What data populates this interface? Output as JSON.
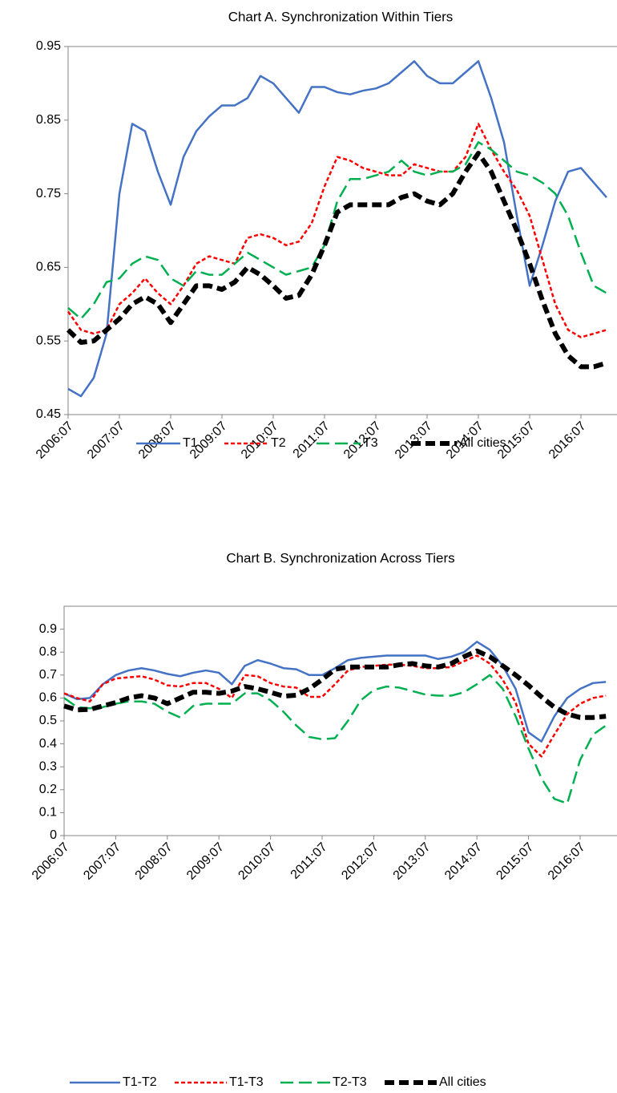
{
  "chart_data": [
    {
      "type": "line",
      "title": "Chart A. Synchronization Within Tiers",
      "categories": [
        "2006:07",
        null,
        null,
        null,
        "2007:07",
        null,
        null,
        null,
        "2008:07",
        null,
        null,
        null,
        "2009:07",
        null,
        null,
        null,
        "2010:07",
        null,
        null,
        null,
        "2011:07",
        null,
        null,
        null,
        "2012:07",
        null,
        null,
        null,
        "2013:07",
        null,
        null,
        null,
        "2014:07",
        null,
        null,
        null,
        "2015:07",
        null,
        null,
        null,
        "2016:07",
        null,
        null
      ],
      "ylim": [
        0.45,
        0.95
      ],
      "yticks": [
        0.45,
        0.55,
        0.65,
        0.75,
        0.85,
        0.95
      ],
      "grid": false,
      "legend": "bottom",
      "series": [
        {
          "name": "T1",
          "color": "#4472C4",
          "line_style": "solid",
          "values": [
            0.485,
            0.475,
            0.5,
            0.56,
            0.75,
            0.845,
            0.835,
            0.78,
            0.735,
            0.8,
            0.835,
            0.855,
            0.87,
            0.87,
            0.88,
            0.91,
            0.9,
            0.88,
            0.86,
            0.895,
            0.895,
            0.888,
            0.885,
            0.89,
            0.893,
            0.9,
            0.915,
            0.93,
            0.91,
            0.9,
            0.9,
            0.915,
            0.93,
            0.88,
            0.82,
            0.72,
            0.625,
            0.68,
            0.74,
            0.78,
            0.785,
            0.765,
            0.745
          ]
        },
        {
          "name": "T2",
          "color": "#FF0000",
          "line_style": "dash",
          "values": [
            0.59,
            0.565,
            0.56,
            0.565,
            0.6,
            0.615,
            0.635,
            0.615,
            0.6,
            0.625,
            0.655,
            0.665,
            0.66,
            0.655,
            0.69,
            0.695,
            0.69,
            0.68,
            0.685,
            0.71,
            0.76,
            0.8,
            0.795,
            0.785,
            0.78,
            0.775,
            0.775,
            0.79,
            0.785,
            0.78,
            0.78,
            0.8,
            0.845,
            0.81,
            0.78,
            0.755,
            0.72,
            0.66,
            0.6,
            0.565,
            0.555,
            0.56,
            0.565
          ]
        },
        {
          "name": "T3",
          "color": "#00B050",
          "line_style": "long-dash",
          "values": [
            0.595,
            0.58,
            0.6,
            0.63,
            0.635,
            0.655,
            0.665,
            0.66,
            0.635,
            0.625,
            0.645,
            0.64,
            0.64,
            0.655,
            0.67,
            0.66,
            0.65,
            0.64,
            0.645,
            0.65,
            0.68,
            0.74,
            0.77,
            0.77,
            0.775,
            0.78,
            0.795,
            0.78,
            0.775,
            0.78,
            0.78,
            0.79,
            0.82,
            0.81,
            0.795,
            0.78,
            0.775,
            0.765,
            0.75,
            0.72,
            0.67,
            0.625,
            0.615
          ]
        },
        {
          "name": "All cities",
          "color": "#000000",
          "line_style": "heavy-dash",
          "values": [
            0.565,
            0.548,
            0.55,
            0.565,
            0.58,
            0.6,
            0.61,
            0.6,
            0.575,
            0.6,
            0.625,
            0.625,
            0.62,
            0.63,
            0.65,
            0.64,
            0.625,
            0.608,
            0.612,
            0.64,
            0.68,
            0.725,
            0.735,
            0.735,
            0.735,
            0.735,
            0.745,
            0.75,
            0.74,
            0.735,
            0.75,
            0.78,
            0.805,
            0.78,
            0.74,
            0.7,
            0.655,
            0.605,
            0.56,
            0.53,
            0.515,
            0.515,
            0.52
          ]
        }
      ]
    },
    {
      "type": "line",
      "title": "Chart B. Synchronization Across Tiers",
      "categories": [
        "2006:07",
        null,
        null,
        null,
        "2007:07",
        null,
        null,
        null,
        "2008:07",
        null,
        null,
        null,
        "2009:07",
        null,
        null,
        null,
        "2010:07",
        null,
        null,
        null,
        "2011:07",
        null,
        null,
        null,
        "2012:07",
        null,
        null,
        null,
        "2013:07",
        null,
        null,
        null,
        "2014:07",
        null,
        null,
        null,
        "2015:07",
        null,
        null,
        null,
        "2016:07",
        null,
        null
      ],
      "ylim": [
        0,
        1
      ],
      "yticks": [
        0,
        0.1,
        0.2,
        0.3,
        0.4,
        0.5,
        0.6,
        0.7,
        0.8,
        0.9
      ],
      "grid": false,
      "legend": "bottom",
      "series": [
        {
          "name": "T1-T2",
          "color": "#4472C4",
          "line_style": "solid",
          "values": [
            0.62,
            0.595,
            0.6,
            0.66,
            0.7,
            0.72,
            0.73,
            0.72,
            0.705,
            0.695,
            0.71,
            0.72,
            0.71,
            0.66,
            0.74,
            0.765,
            0.75,
            0.73,
            0.725,
            0.7,
            0.7,
            0.73,
            0.765,
            0.775,
            0.78,
            0.785,
            0.785,
            0.785,
            0.785,
            0.77,
            0.78,
            0.8,
            0.845,
            0.81,
            0.74,
            0.64,
            0.45,
            0.41,
            0.52,
            0.6,
            0.64,
            0.665,
            0.67
          ]
        },
        {
          "name": "T1-T3",
          "color": "#FF0000",
          "line_style": "dash",
          "values": [
            0.62,
            0.6,
            0.585,
            0.66,
            0.685,
            0.69,
            0.695,
            0.68,
            0.655,
            0.65,
            0.665,
            0.665,
            0.64,
            0.6,
            0.7,
            0.695,
            0.665,
            0.65,
            0.645,
            0.605,
            0.605,
            0.66,
            0.72,
            0.735,
            0.74,
            0.745,
            0.745,
            0.74,
            0.73,
            0.73,
            0.735,
            0.76,
            0.785,
            0.75,
            0.68,
            0.58,
            0.4,
            0.345,
            0.44,
            0.53,
            0.575,
            0.6,
            0.61
          ]
        },
        {
          "name": "T2-T3",
          "color": "#00B050",
          "line_style": "long-dash",
          "values": [
            0.6,
            0.56,
            0.555,
            0.56,
            0.575,
            0.585,
            0.585,
            0.575,
            0.54,
            0.515,
            0.565,
            0.575,
            0.575,
            0.575,
            0.62,
            0.62,
            0.59,
            0.54,
            0.48,
            0.43,
            0.42,
            0.425,
            0.5,
            0.59,
            0.635,
            0.65,
            0.645,
            0.63,
            0.615,
            0.61,
            0.61,
            0.625,
            0.66,
            0.7,
            0.64,
            0.52,
            0.38,
            0.25,
            0.16,
            0.14,
            0.33,
            0.44,
            0.48
          ]
        },
        {
          "name": "All cities",
          "color": "#000000",
          "line_style": "heavy-dash",
          "values": [
            0.565,
            0.548,
            0.55,
            0.565,
            0.58,
            0.6,
            0.61,
            0.6,
            0.575,
            0.6,
            0.625,
            0.625,
            0.62,
            0.63,
            0.65,
            0.64,
            0.625,
            0.608,
            0.612,
            0.64,
            0.68,
            0.725,
            0.735,
            0.735,
            0.735,
            0.735,
            0.745,
            0.75,
            0.74,
            0.735,
            0.75,
            0.78,
            0.805,
            0.78,
            0.74,
            0.7,
            0.655,
            0.605,
            0.56,
            0.53,
            0.515,
            0.515,
            0.52
          ]
        }
      ]
    }
  ]
}
